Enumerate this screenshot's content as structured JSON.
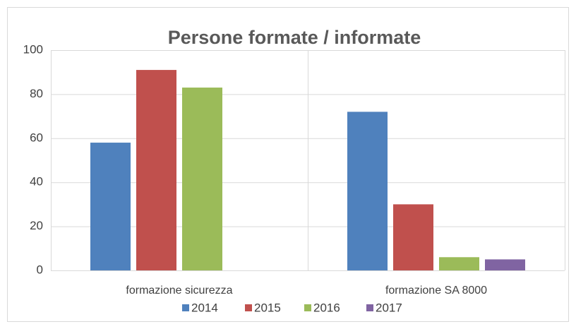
{
  "chart_data": {
    "type": "bar",
    "title": "Persone formate / informate",
    "categories": [
      "formazione sicurezza",
      "formazione SA 8000"
    ],
    "series": [
      {
        "name": "2014",
        "color": "#4f81bd",
        "values": [
          58,
          72
        ]
      },
      {
        "name": "2015",
        "color": "#c0504d",
        "values": [
          91,
          30
        ]
      },
      {
        "name": "2016",
        "color": "#9bbb59",
        "values": [
          83,
          6
        ]
      },
      {
        "name": "2017",
        "color": "#8064a2",
        "values": [
          null,
          5
        ]
      }
    ],
    "ylim": [
      0,
      100
    ],
    "yticks": [
      0,
      20,
      40,
      60,
      80,
      100
    ],
    "grid": true,
    "legend": "bottom"
  }
}
